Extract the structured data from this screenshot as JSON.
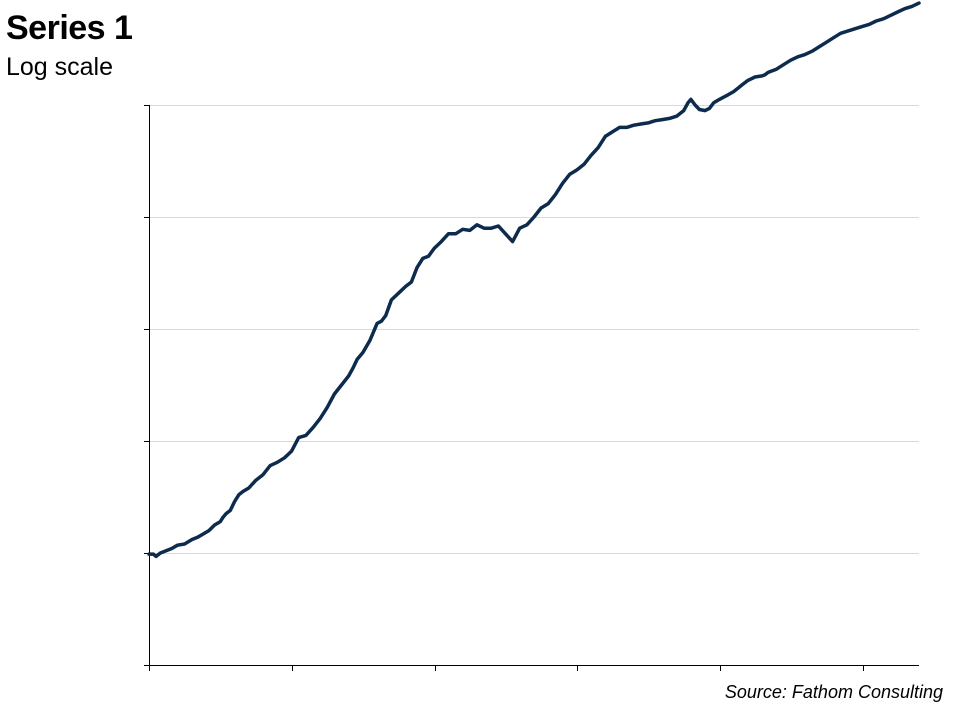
{
  "chart_data": {
    "type": "line",
    "title": "Series 1",
    "subtitle": "Log scale",
    "source": "Source: Fathom Consulting",
    "scale": "log",
    "grid": true,
    "x_ticks": 6,
    "ylim": [
      0,
      5
    ],
    "x": [
      0,
      3,
      5,
      8,
      12,
      16,
      20,
      25,
      30,
      34,
      38,
      42,
      46,
      50,
      52,
      54,
      57,
      60,
      63,
      66,
      70,
      75,
      80,
      85,
      90,
      95,
      100,
      105,
      110,
      115,
      120,
      125,
      130,
      135,
      140,
      143,
      146,
      150,
      155,
      160,
      163,
      166,
      170,
      175,
      180,
      184,
      188,
      192,
      196,
      200,
      205,
      210,
      215,
      220,
      225,
      230,
      235,
      240,
      245,
      250,
      255,
      260,
      265,
      270,
      275,
      280,
      285,
      290,
      295,
      300,
      305,
      310,
      315,
      320,
      325,
      330,
      335,
      340,
      345,
      350,
      355,
      360,
      365,
      370,
      375,
      378,
      380,
      383,
      386,
      390,
      393,
      396,
      400,
      403,
      406,
      410,
      413,
      416,
      420,
      425,
      430,
      432,
      434,
      436,
      440,
      445,
      450,
      455,
      460,
      465,
      470,
      475,
      480,
      485,
      490,
      495,
      500,
      505,
      510,
      515,
      520,
      525,
      530,
      535,
      540
    ],
    "series": [
      {
        "color": "#0d2b4c",
        "values": [
          0.99,
          0.99,
          0.97,
          1.0,
          1.02,
          1.04,
          1.07,
          1.08,
          1.12,
          1.14,
          1.17,
          1.2,
          1.25,
          1.28,
          1.32,
          1.35,
          1.38,
          1.46,
          1.52,
          1.55,
          1.58,
          1.65,
          1.7,
          1.78,
          1.81,
          1.85,
          1.91,
          2.03,
          2.05,
          2.12,
          2.2,
          2.3,
          2.42,
          2.5,
          2.58,
          2.65,
          2.73,
          2.79,
          2.9,
          3.05,
          3.07,
          3.12,
          3.26,
          3.32,
          3.38,
          3.42,
          3.55,
          3.63,
          3.65,
          3.72,
          3.78,
          3.85,
          3.85,
          3.89,
          3.88,
          3.93,
          3.9,
          3.9,
          3.92,
          3.85,
          3.78,
          3.9,
          3.93,
          4.0,
          4.08,
          4.12,
          4.2,
          4.3,
          4.38,
          4.42,
          4.47,
          4.55,
          4.62,
          4.72,
          4.76,
          4.8,
          4.8,
          4.82,
          4.83,
          4.84,
          4.86,
          4.87,
          4.88,
          4.9,
          4.95,
          5.02,
          5.05,
          5.0,
          4.96,
          4.95,
          4.97,
          5.02,
          5.05,
          5.07,
          5.09,
          5.12,
          5.15,
          5.18,
          5.22,
          5.25,
          5.26,
          5.27,
          5.29,
          5.3,
          5.32,
          5.36,
          5.4,
          5.43,
          5.45,
          5.48,
          5.52,
          5.56,
          5.6,
          5.64,
          5.66,
          5.68,
          5.7,
          5.72,
          5.75,
          5.77,
          5.8,
          5.83,
          5.86,
          5.88,
          5.91
        ]
      }
    ]
  }
}
